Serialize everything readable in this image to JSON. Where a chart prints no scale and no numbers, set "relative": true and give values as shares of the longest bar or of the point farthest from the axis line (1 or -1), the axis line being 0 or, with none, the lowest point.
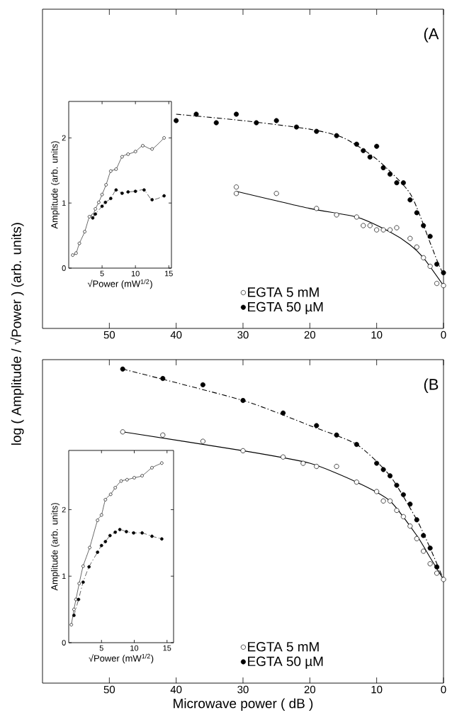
{
  "chart_data": [
    {
      "type": "scatter",
      "relative": true,
      "ylabel": "log ( Amplitude / √Power ) (arb. units)",
      "xlim": [
        60,
        0
      ],
      "xticks": [
        50,
        40,
        30,
        20,
        10,
        0
      ],
      "marker": "circle",
      "legend": "bottom",
      "annotations": [
        "(A"
      ],
      "series": [
        {
          "name": "EGTA 5 mM",
          "color": "#ffffff",
          "x": [
            31,
            31,
            25,
            19,
            16,
            13,
            12,
            11,
            10,
            9,
            8,
            7,
            5,
            4,
            3,
            2,
            1,
            0
          ],
          "values": [
            0.66,
            0.63,
            0.63,
            0.56,
            0.53,
            0.52,
            0.48,
            0.48,
            0.46,
            0.46,
            0.46,
            0.47,
            0.42,
            0.38,
            0.33,
            0.29,
            0.21,
            0.2
          ]
        },
        {
          "name": "EGTA 50 µM",
          "color": "#000000",
          "x": [
            40,
            37,
            34,
            31,
            28,
            25,
            22,
            19,
            16,
            13,
            12,
            11,
            10,
            9,
            8,
            7,
            6,
            5,
            4,
            3,
            2,
            1,
            0
          ],
          "values": [
            0.97,
            1.0,
            0.96,
            1.0,
            0.96,
            0.97,
            0.94,
            0.92,
            0.9,
            0.86,
            0.83,
            0.8,
            0.85,
            0.75,
            0.72,
            0.68,
            0.68,
            0.6,
            0.54,
            0.48,
            0.43,
            0.3,
            0.26
          ]
        },
        {
          "type": "line",
          "marker": "none",
          "line_style": "solid",
          "color": "#000000",
          "x": [
            31,
            20,
            13,
            8,
            5,
            3,
            0
          ],
          "values": [
            0.64,
            0.56,
            0.52,
            0.45,
            0.39,
            0.33,
            0.2
          ]
        },
        {
          "type": "line",
          "marker": "none",
          "line_style": "dashed",
          "color": "#000000",
          "x": [
            40,
            30,
            20,
            15,
            10,
            5,
            2,
            1,
            0
          ],
          "values": [
            1.0,
            0.97,
            0.93,
            0.89,
            0.79,
            0.63,
            0.4,
            0.32,
            0.25
          ]
        }
      ]
    },
    {
      "type": "line",
      "xlabel": "√Power (mW$^{1/2}$)",
      "ylabel": "Amplitude (arb. units)",
      "xlim": [
        0,
        15.4
      ],
      "ylim": [
        0,
        2.56
      ],
      "xticks": [
        5,
        10,
        15
      ],
      "yticks": [
        0,
        1,
        2
      ],
      "marker": "circle",
      "series": [
        {
          "color": "#ffffff",
          "line_style": "solid",
          "x": [
            0.6,
            1.1,
            1.6,
            2.4,
            3.1,
            3.6,
            4.0,
            4.5,
            5.0,
            5.6,
            6.3,
            7.1,
            8.0,
            8.9,
            10.0,
            11.1,
            12.5,
            14.3
          ],
          "values": [
            0.2,
            0.23,
            0.38,
            0.56,
            0.79,
            0.81,
            0.91,
            1.01,
            1.13,
            1.28,
            1.49,
            1.52,
            1.71,
            1.75,
            1.79,
            1.88,
            1.83,
            2.0
          ]
        },
        {
          "color": "#000000",
          "line_style": "dashed",
          "x": [
            3.6,
            4.0,
            5.0,
            5.5,
            6.3,
            7.1,
            8.0,
            8.9,
            10.0,
            11.3,
            12.5,
            14.3
          ],
          "values": [
            0.77,
            0.83,
            0.95,
            1.01,
            1.07,
            1.2,
            1.15,
            1.17,
            1.18,
            1.2,
            1.05,
            1.11
          ]
        }
      ]
    },
    {
      "type": "scatter",
      "relative": true,
      "xlabel": "Microwave power ( dB )",
      "xlim": [
        60,
        0
      ],
      "xticks": [
        50,
        40,
        30,
        20,
        10,
        0
      ],
      "marker": "circle",
      "legend": "bottom",
      "annotations": [
        "(B"
      ],
      "series": [
        {
          "name": "EGTA 5 mM",
          "color": "#ffffff",
          "x": [
            48,
            42,
            36,
            30,
            24,
            21,
            19,
            16,
            13,
            10,
            9,
            8,
            7,
            6,
            5,
            4,
            3,
            2,
            1,
            0
          ],
          "values": [
            0.8,
            0.79,
            0.77,
            0.74,
            0.72,
            0.7,
            0.69,
            0.69,
            0.64,
            0.61,
            0.58,
            0.58,
            0.55,
            0.53,
            0.5,
            0.46,
            0.42,
            0.38,
            0.35,
            0.33
          ]
        },
        {
          "name": "EGTA 50 µM",
          "color": "#000000",
          "x": [
            48,
            42,
            36,
            30,
            24,
            19,
            16,
            13,
            10,
            9,
            8,
            7,
            6,
            5,
            4,
            3,
            2,
            1
          ],
          "values": [
            1.0,
            0.97,
            0.95,
            0.9,
            0.86,
            0.82,
            0.79,
            0.76,
            0.7,
            0.68,
            0.66,
            0.63,
            0.6,
            0.57,
            0.52,
            0.47,
            0.43,
            0.37
          ]
        },
        {
          "type": "line",
          "marker": "none",
          "line_style": "solid",
          "color": "#000000",
          "x": [
            48,
            30,
            20,
            13,
            8,
            4,
            2,
            0
          ],
          "values": [
            0.8,
            0.74,
            0.7,
            0.64,
            0.58,
            0.47,
            0.4,
            0.33
          ]
        },
        {
          "type": "line",
          "marker": "none",
          "line_style": "dashed",
          "color": "#000000",
          "x": [
            48,
            30,
            20,
            13,
            8,
            4,
            2,
            0
          ],
          "values": [
            1.0,
            0.9,
            0.82,
            0.76,
            0.66,
            0.52,
            0.43,
            0.33
          ]
        }
      ]
    },
    {
      "type": "line",
      "xlabel": "√Power (mW$^{1/2}$)",
      "ylabel": "Amplitude (arb. units)",
      "xlim": [
        0,
        16
      ],
      "ylim": [
        0,
        2.89
      ],
      "xticks": [
        5,
        10,
        15
      ],
      "yticks": [
        0,
        1,
        2
      ],
      "marker": "circle",
      "series": [
        {
          "color": "#ffffff",
          "line_style": "solid",
          "x": [
            0.4,
            0.8,
            1.1,
            1.6,
            2.2,
            3.2,
            4.4,
            5.0,
            5.6,
            6.4,
            7.1,
            8.0,
            8.9,
            10.0,
            11.2,
            12.7,
            14.2
          ],
          "values": [
            0.27,
            0.5,
            0.65,
            0.89,
            1.15,
            1.43,
            1.84,
            1.92,
            2.15,
            2.23,
            2.33,
            2.43,
            2.45,
            2.48,
            2.51,
            2.63,
            2.7
          ]
        },
        {
          "color": "#000000",
          "line_style": "dashed",
          "x": [
            0.8,
            1.5,
            2.2,
            3.1,
            4.4,
            5.0,
            5.6,
            6.3,
            7.1,
            7.8,
            8.8,
            9.9,
            11.2,
            12.7,
            14.2
          ],
          "values": [
            0.41,
            0.65,
            0.91,
            1.14,
            1.36,
            1.46,
            1.52,
            1.61,
            1.66,
            1.7,
            1.67,
            1.65,
            1.65,
            1.6,
            1.56
          ]
        }
      ]
    }
  ]
}
